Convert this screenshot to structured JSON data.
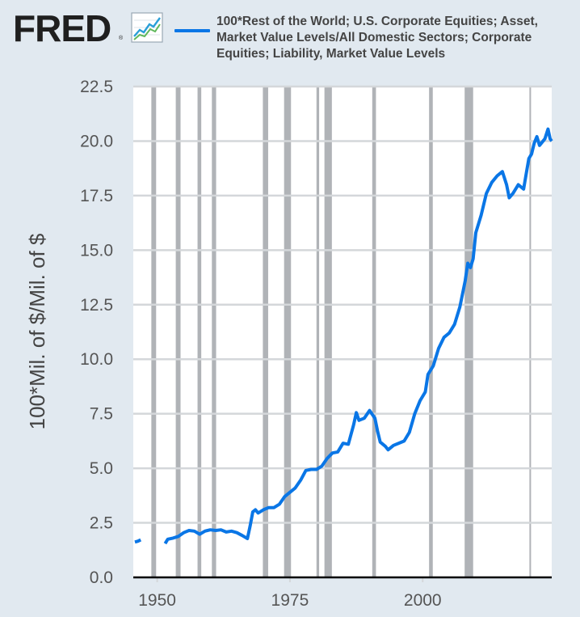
{
  "brand": {
    "logo_text": "FRED",
    "registered_mark": "®",
    "icon": "line-chart-icon"
  },
  "legend": {
    "line1": "100*Rest of the World; U.S. Corporate Equities; Asset,",
    "line2": "Market Value Levels/All Domestic Sectors; Corporate",
    "line3": "Equities; Liability, Market Value Levels"
  },
  "colors": {
    "background": "#e1e9f0",
    "plot_background": "#ffffff",
    "series": "#0a76e6",
    "recession": "#b0b3b7",
    "grid": "#d4d7da",
    "axis": "#000000"
  },
  "chart_data": {
    "type": "line",
    "title": "",
    "xlabel": "",
    "ylabel": "100*Mil. of $/Mil. of $",
    "xlim": [
      1945.5,
      2024.3
    ],
    "ylim": [
      0,
      22.5
    ],
    "yticks": [
      "0.0",
      "2.5",
      "5.0",
      "7.5",
      "10.0",
      "12.5",
      "15.0",
      "17.5",
      "20.0",
      "22.5"
    ],
    "xticks": [
      "1950",
      "1975",
      "2000"
    ],
    "recessions": [
      [
        1948.9,
        1949.8
      ],
      [
        1953.5,
        1954.4
      ],
      [
        1957.6,
        1958.3
      ],
      [
        1960.3,
        1961.1
      ],
      [
        1969.9,
        1970.9
      ],
      [
        1973.9,
        1975.2
      ],
      [
        1980.0,
        1980.5
      ],
      [
        1981.5,
        1982.9
      ],
      [
        1990.5,
        1991.2
      ],
      [
        2001.2,
        2001.9
      ],
      [
        2007.9,
        2009.5
      ],
      [
        2020.1,
        2020.4
      ]
    ],
    "series": [
      {
        "name": "100*Rest of the World; U.S. Corporate Equities; Asset, Market Value Levels/All Domestic Sectors; Corporate Equities; Liability, Market Value Levels",
        "segments": [
          [
            [
              1945.8,
              1.62
            ],
            [
              1946.4,
              1.66
            ],
            [
              1946.9,
              1.72
            ]
          ],
          [
            [
              1951.5,
              1.55
            ],
            [
              1952.0,
              1.75
            ],
            [
              1953.0,
              1.8
            ],
            [
              1954.0,
              1.88
            ],
            [
              1955.0,
              2.05
            ],
            [
              1956.0,
              2.15
            ],
            [
              1957.0,
              2.12
            ],
            [
              1958.0,
              1.98
            ],
            [
              1959.0,
              2.12
            ],
            [
              1960.0,
              2.18
            ],
            [
              1961.0,
              2.15
            ],
            [
              1962.0,
              2.18
            ],
            [
              1963.0,
              2.08
            ],
            [
              1964.0,
              2.12
            ],
            [
              1965.0,
              2.05
            ],
            [
              1966.0,
              1.92
            ],
            [
              1967.0,
              1.78
            ],
            [
              1967.5,
              2.35
            ],
            [
              1968.0,
              3.0
            ],
            [
              1968.5,
              3.1
            ],
            [
              1969.0,
              2.95
            ],
            [
              1970.0,
              3.1
            ],
            [
              1971.0,
              3.2
            ],
            [
              1972.0,
              3.2
            ],
            [
              1973.0,
              3.35
            ],
            [
              1974.0,
              3.7
            ],
            [
              1975.0,
              3.9
            ],
            [
              1976.0,
              4.1
            ],
            [
              1977.0,
              4.45
            ],
            [
              1978.0,
              4.9
            ],
            [
              1979.0,
              4.95
            ],
            [
              1980.0,
              4.95
            ],
            [
              1981.0,
              5.1
            ],
            [
              1982.0,
              5.45
            ],
            [
              1983.0,
              5.7
            ],
            [
              1984.0,
              5.75
            ],
            [
              1985.0,
              6.15
            ],
            [
              1986.0,
              6.1
            ],
            [
              1987.0,
              7.0
            ],
            [
              1987.5,
              7.55
            ],
            [
              1988.0,
              7.2
            ],
            [
              1989.0,
              7.3
            ],
            [
              1990.0,
              7.65
            ],
            [
              1991.0,
              7.3
            ],
            [
              1991.5,
              6.7
            ],
            [
              1992.0,
              6.2
            ],
            [
              1993.0,
              6.0
            ],
            [
              1993.5,
              5.85
            ],
            [
              1994.5,
              6.05
            ],
            [
              1995.5,
              6.15
            ],
            [
              1996.5,
              6.25
            ],
            [
              1997.5,
              6.65
            ],
            [
              1998.5,
              7.5
            ],
            [
              1999.5,
              8.1
            ],
            [
              2000.5,
              8.5
            ],
            [
              2001.0,
              9.3
            ],
            [
              2002.0,
              9.7
            ],
            [
              2003.0,
              10.5
            ],
            [
              2004.0,
              11.0
            ],
            [
              2005.0,
              11.2
            ],
            [
              2006.0,
              11.6
            ],
            [
              2007.0,
              12.4
            ],
            [
              2008.0,
              13.6
            ],
            [
              2008.5,
              14.4
            ],
            [
              2009.0,
              14.2
            ],
            [
              2009.5,
              14.6
            ],
            [
              2010.0,
              15.8
            ],
            [
              2011.0,
              16.6
            ],
            [
              2012.0,
              17.6
            ],
            [
              2013.0,
              18.1
            ],
            [
              2014.0,
              18.4
            ],
            [
              2015.0,
              18.6
            ],
            [
              2015.8,
              18.0
            ],
            [
              2016.3,
              17.4
            ],
            [
              2017.0,
              17.6
            ],
            [
              2018.0,
              18.0
            ],
            [
              2019.0,
              17.8
            ],
            [
              2019.5,
              18.5
            ],
            [
              2020.0,
              19.2
            ],
            [
              2020.5,
              19.4
            ],
            [
              2021.0,
              19.9
            ],
            [
              2021.5,
              20.2
            ],
            [
              2022.0,
              19.8
            ],
            [
              2023.0,
              20.1
            ],
            [
              2023.6,
              20.55
            ],
            [
              2024.0,
              20.1
            ],
            [
              2024.3,
              20.0
            ]
          ]
        ]
      }
    ]
  }
}
